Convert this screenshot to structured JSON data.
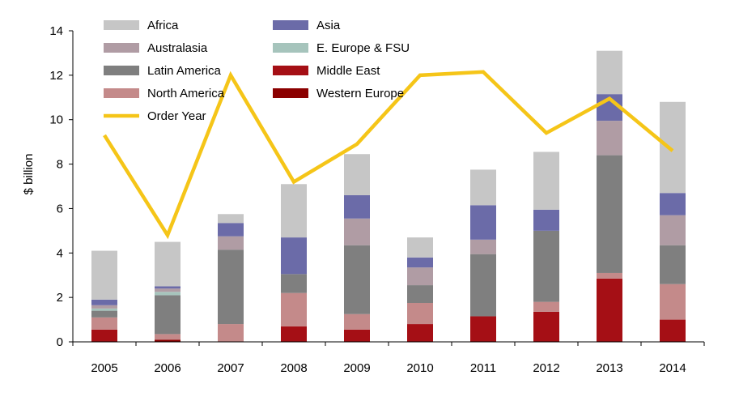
{
  "chart_data": {
    "type": "bar",
    "stacked": true,
    "title": "",
    "xlabel": "",
    "ylabel": "$ billion",
    "ylim": [
      0,
      14
    ],
    "yticks": [
      0,
      2,
      4,
      6,
      8,
      10,
      12,
      14
    ],
    "grid": false,
    "legend_position": "top-left",
    "categories": [
      "2005",
      "2006",
      "2007",
      "2008",
      "2009",
      "2010",
      "2011",
      "2012",
      "2013",
      "2014"
    ],
    "series": [
      {
        "name": "Western Europe",
        "color": "#8b0000",
        "values": [
          0.0,
          0.1,
          0.0,
          0.0,
          0.0,
          0.0,
          0.0,
          0.0,
          0.0,
          0.0
        ]
      },
      {
        "name": "Middle East",
        "color": "#a50f15",
        "values": [
          0.55,
          0.0,
          0.0,
          0.7,
          0.55,
          0.8,
          1.15,
          1.35,
          2.85,
          1.0
        ]
      },
      {
        "name": "North America",
        "color": "#c48a8a",
        "values": [
          0.55,
          0.25,
          0.8,
          1.5,
          0.7,
          0.95,
          0.0,
          0.45,
          0.25,
          1.6
        ]
      },
      {
        "name": "Latin America",
        "color": "#7f7f7f",
        "values": [
          0.3,
          1.75,
          3.35,
          0.85,
          3.1,
          0.8,
          2.8,
          3.2,
          5.3,
          1.75
        ]
      },
      {
        "name": "E. Europe & FSU",
        "color": "#a6c4bc",
        "values": [
          0.1,
          0.15,
          0.0,
          0.0,
          0.0,
          0.0,
          0.0,
          0.0,
          0.0,
          0.0
        ]
      },
      {
        "name": "Australasia",
        "color": "#b09ca4",
        "values": [
          0.15,
          0.15,
          0.6,
          0.0,
          1.2,
          0.8,
          0.65,
          0.0,
          1.55,
          1.35
        ]
      },
      {
        "name": "Asia",
        "color": "#6b6ba8",
        "values": [
          0.25,
          0.1,
          0.6,
          1.65,
          1.05,
          0.45,
          1.55,
          0.95,
          1.2,
          1.0
        ]
      },
      {
        "name": "Africa",
        "color": "#c6c6c6",
        "values": [
          2.2,
          2.0,
          0.4,
          2.4,
          1.85,
          0.9,
          1.6,
          2.6,
          1.95,
          4.1
        ]
      }
    ],
    "line_series": {
      "name": "Order Year",
      "color": "#f5c518",
      "values": [
        9.3,
        4.8,
        12.0,
        7.2,
        8.9,
        12.0,
        12.15,
        9.4,
        10.95,
        8.6
      ]
    },
    "legend": [
      "Africa",
      "Asia",
      "Australasia",
      "E. Europe & FSU",
      "Latin America",
      "Middle East",
      "North America",
      "Western Europe",
      "Order Year"
    ]
  }
}
